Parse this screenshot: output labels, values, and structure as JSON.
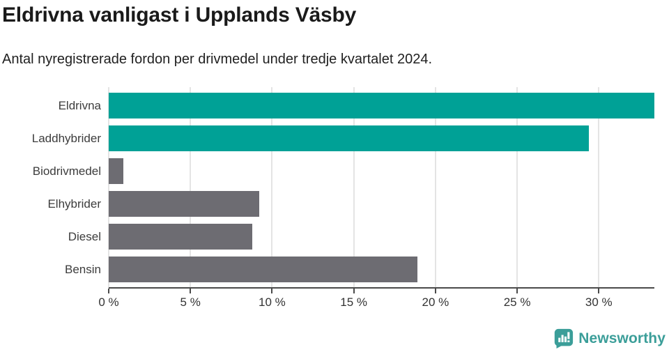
{
  "chart_data": {
    "type": "bar",
    "orientation": "horizontal",
    "title": "Eldrivna vanligast i Upplands Väsby",
    "subtitle": "Antal nyregistrerade fordon per drivmedel under tredje kvartalet 2024.",
    "categories": [
      "Eldrivna",
      "Laddhybrider",
      "Biodrivmedel",
      "Elhybrider",
      "Diesel",
      "Bensin"
    ],
    "values": [
      33.4,
      29.4,
      0.9,
      9.2,
      8.8,
      18.9
    ],
    "unit": "%",
    "xlabel": "",
    "ylabel": "",
    "xlim": [
      0,
      33.4
    ],
    "xticks": [
      0,
      5,
      10,
      15,
      20,
      25,
      30
    ],
    "xtick_labels": [
      "0 %",
      "5 %",
      "10 %",
      "15 %",
      "20 %",
      "25 %",
      "30 %"
    ],
    "grid": "vertical-gridlines-on",
    "legend": "none",
    "bar_colors": [
      "#00a196",
      "#00a196",
      "#6d6c72",
      "#6d6c72",
      "#6d6c72",
      "#6d6c72"
    ]
  },
  "colors": {
    "teal_bar": "#00a196",
    "gray_bar": "#6d6c72",
    "gridline": "#e4e4e4",
    "axis": "#4a4a4a",
    "title_text": "#1a1a1a",
    "label_text": "#3c3c3c",
    "logo_teal": "#3b9e99"
  },
  "branding": {
    "logo_text": "Newsworthy",
    "logo_icon": "bar-chart-speech-bubble-icon"
  }
}
